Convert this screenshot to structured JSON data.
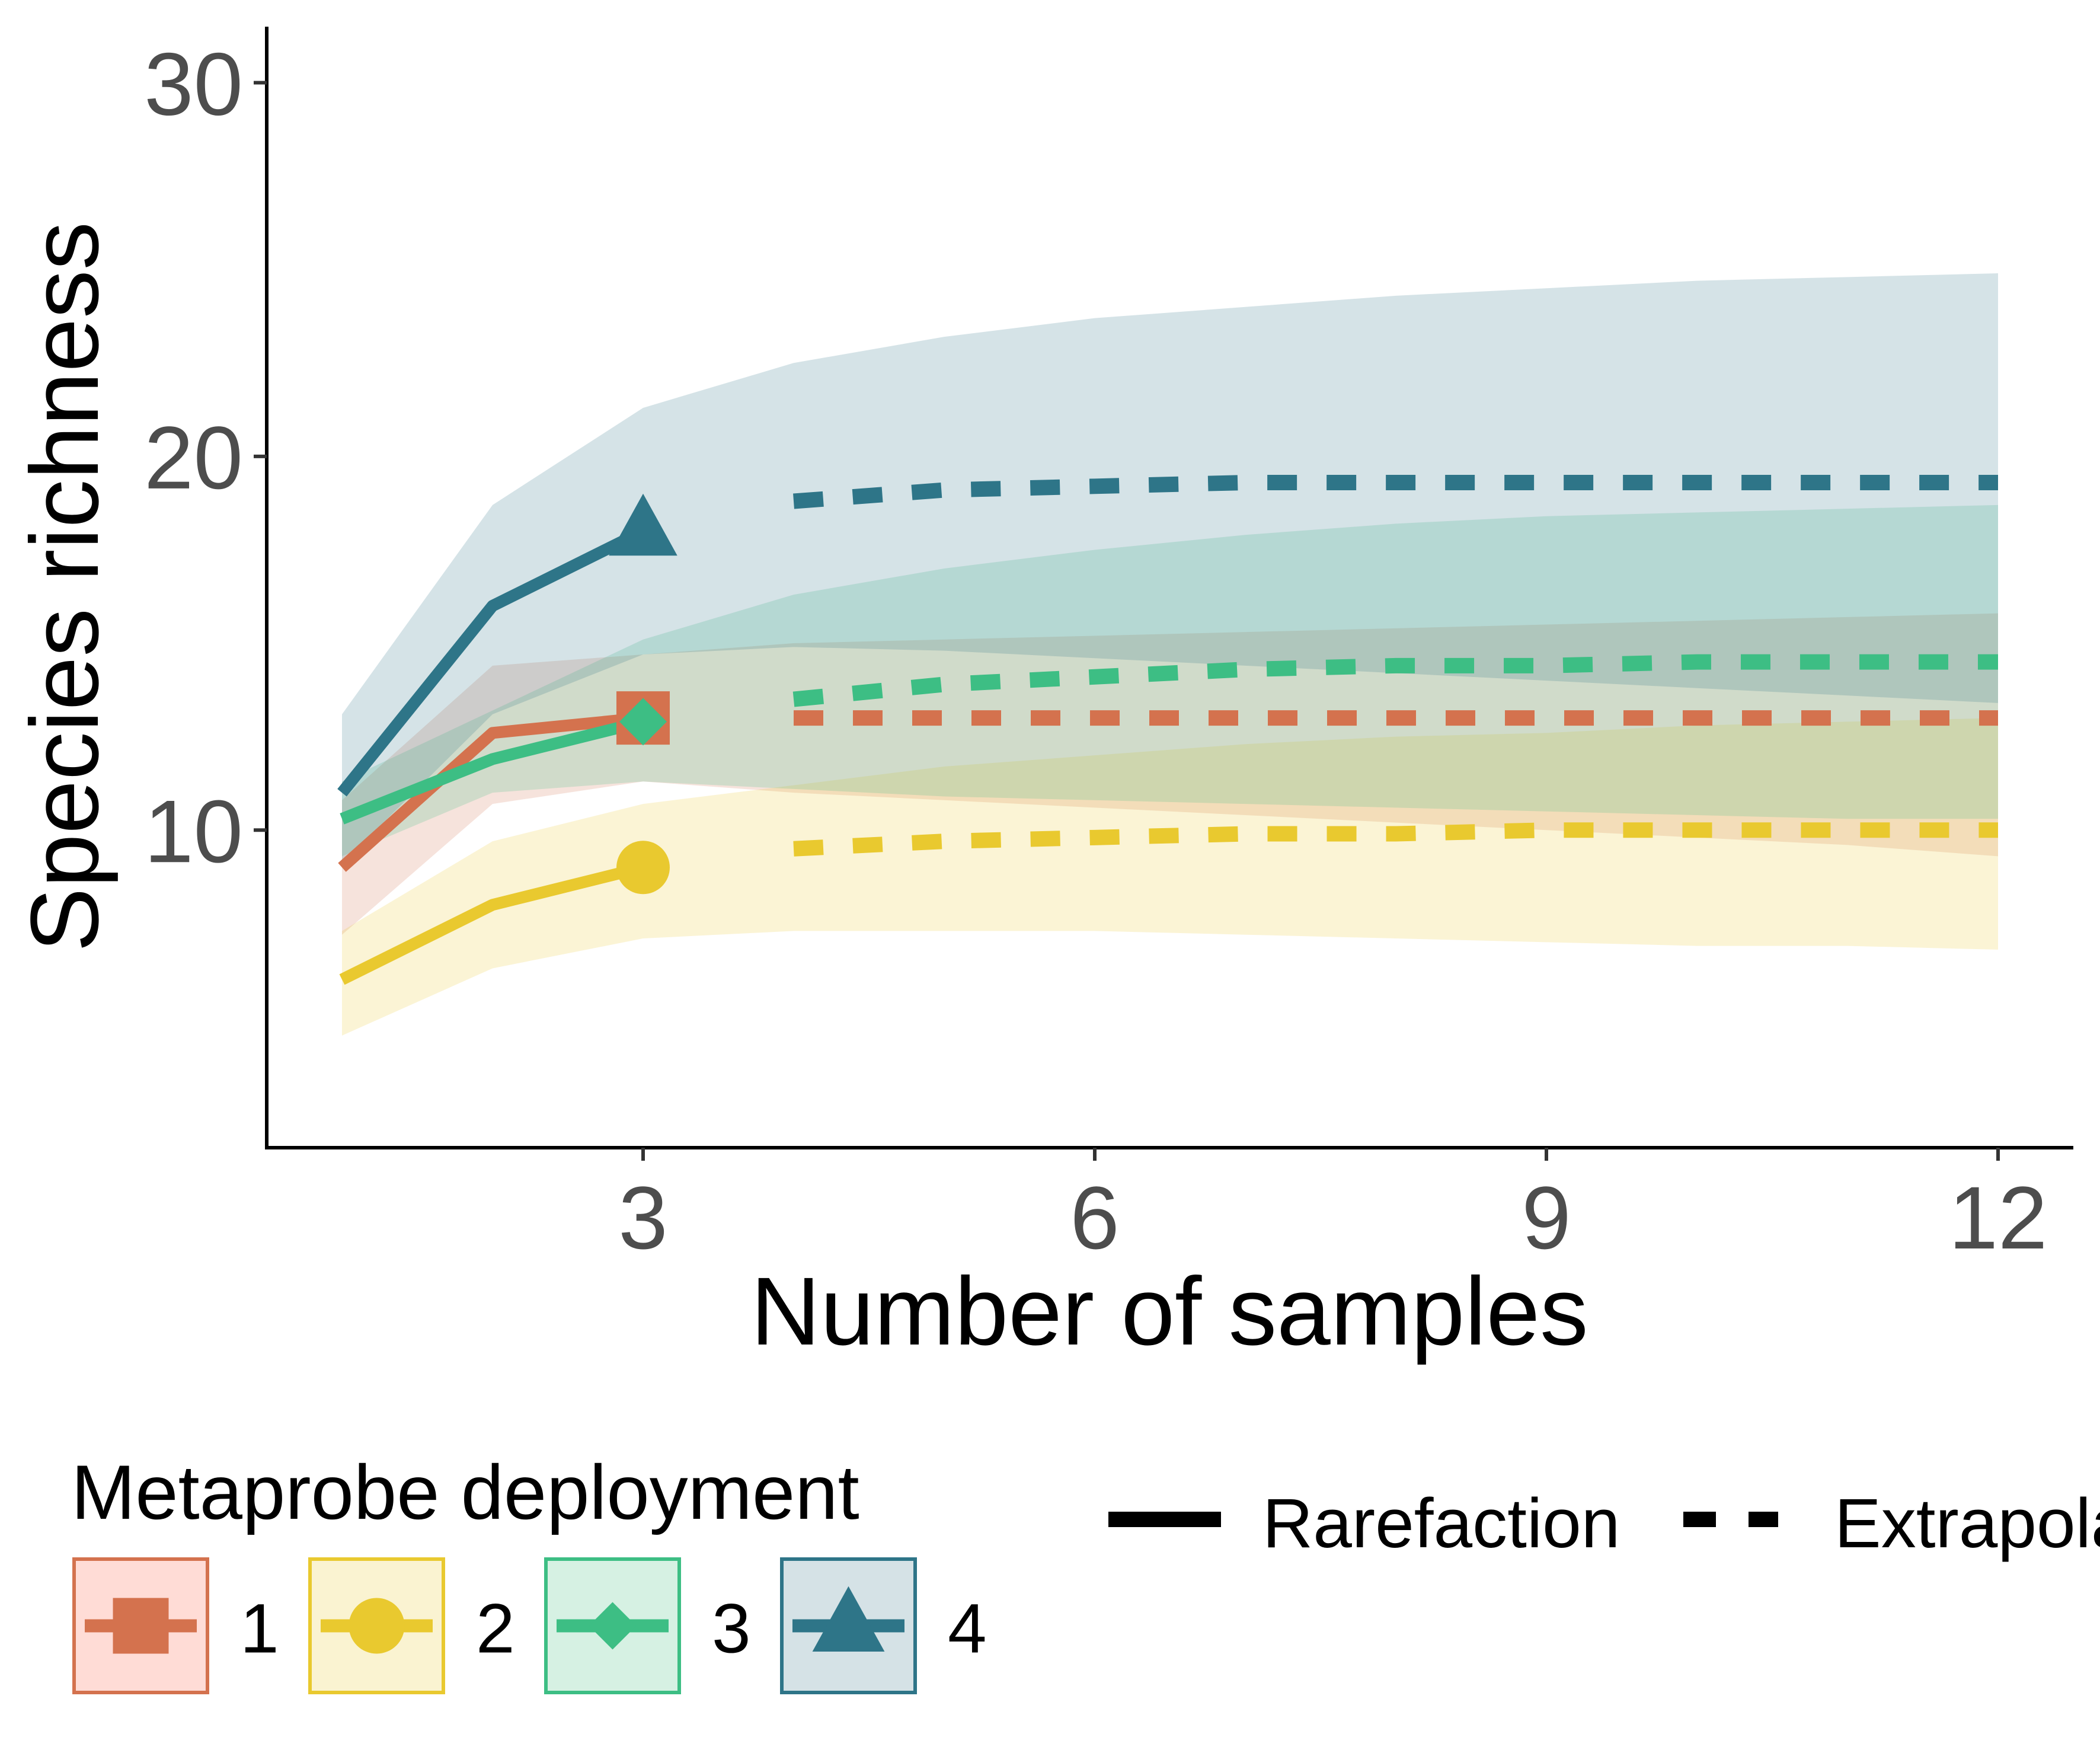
{
  "chart_data": {
    "type": "line",
    "xlabel": "Number of samples",
    "ylabel": "Species richness",
    "xlim": [
      0.5,
      12.5
    ],
    "ylim": [
      1.5,
      31.5
    ],
    "xticks": [
      3,
      6,
      9,
      12
    ],
    "yticks": [
      10,
      20,
      30
    ],
    "x": [
      1,
      2,
      3,
      4,
      5,
      6,
      7,
      8,
      9,
      10,
      11,
      12
    ],
    "observed_x": 3,
    "grid": false,
    "legend_title": "Metaprobe deployment",
    "legend_position": "bottom",
    "linetype_legend": [
      {
        "label": "Rarefaction",
        "style": "solid"
      },
      {
        "label": "Extrapolation",
        "style": "dashed"
      }
    ],
    "series": [
      {
        "name": "1",
        "color": "#D4724E",
        "fill": "#FFDCD6",
        "marker": "square",
        "values": [
          9.0,
          12.6,
          13.0,
          13.0,
          13.0,
          13.0,
          13.0,
          13.0,
          13.0,
          13.0,
          13.0,
          13.0
        ],
        "lower": [
          7.2,
          10.7,
          11.3,
          11.0,
          10.8,
          10.6,
          10.4,
          10.2,
          10.0,
          9.8,
          9.6,
          9.3
        ],
        "upper": [
          10.8,
          14.4,
          14.7,
          15.0,
          15.1,
          15.2,
          15.3,
          15.4,
          15.5,
          15.6,
          15.7,
          15.8
        ]
      },
      {
        "name": "2",
        "color": "#E9C92F",
        "fill": "#FAF3D1",
        "marker": "circle",
        "values": [
          6.0,
          8.0,
          9.0,
          9.5,
          9.7,
          9.8,
          9.9,
          9.9,
          10.0,
          10.0,
          10.0,
          10.0
        ],
        "lower": [
          4.5,
          6.3,
          7.1,
          7.3,
          7.3,
          7.3,
          7.2,
          7.1,
          7.0,
          6.9,
          6.9,
          6.8
        ],
        "upper": [
          7.3,
          9.7,
          10.7,
          11.2,
          11.7,
          12.0,
          12.3,
          12.5,
          12.6,
          12.8,
          12.9,
          13.0
        ]
      },
      {
        "name": "3",
        "color": "#3DBE84",
        "fill": "#D6F1E3",
        "marker": "diamond",
        "values": [
          10.3,
          11.9,
          12.9,
          13.5,
          13.9,
          14.1,
          14.3,
          14.4,
          14.4,
          14.5,
          14.5,
          14.5
        ],
        "lower": [
          9.3,
          11.0,
          11.3,
          11.1,
          10.9,
          10.8,
          10.7,
          10.6,
          10.5,
          10.4,
          10.3,
          10.3
        ],
        "upper": [
          11.3,
          13.2,
          15.1,
          16.3,
          17.0,
          17.5,
          17.9,
          18.2,
          18.4,
          18.5,
          18.6,
          18.7
        ]
      },
      {
        "name": "4",
        "color": "#2E7588",
        "fill": "#D5E2E6",
        "marker": "triangle",
        "values": [
          11.0,
          16.0,
          18.0,
          18.8,
          19.1,
          19.2,
          19.3,
          19.3,
          19.3,
          19.3,
          19.3,
          19.3
        ],
        "lower": [
          9.1,
          13.1,
          14.7,
          14.9,
          14.8,
          14.6,
          14.4,
          14.2,
          14.0,
          13.8,
          13.6,
          13.4
        ],
        "upper": [
          13.1,
          18.7,
          21.3,
          22.5,
          23.2,
          23.7,
          24.0,
          24.3,
          24.5,
          24.7,
          24.8,
          24.9
        ]
      }
    ]
  }
}
